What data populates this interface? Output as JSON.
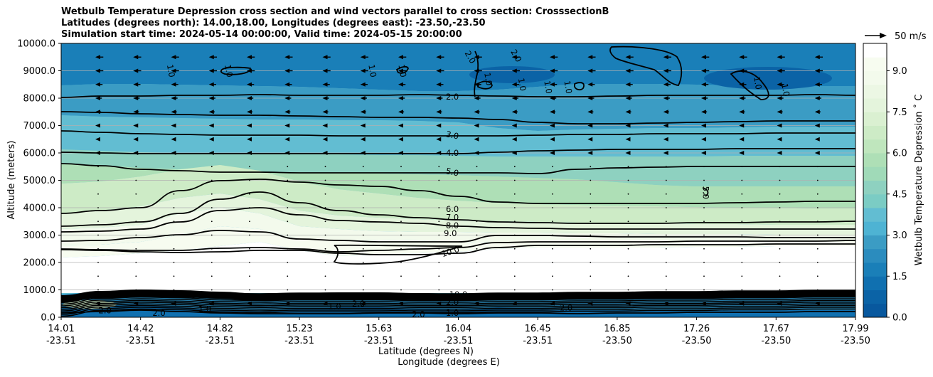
{
  "chart_data": {
    "type": "contour",
    "title_lines": [
      "Wetbulb Temperature Depression cross section and wind vectors parallel to cross section: CrosssectionB",
      "Latitudes (degrees north): 14.00,18.00, Longitudes (degrees east): -23.50,-23.50",
      "Simulation start time: 2024-05-14 00:00:00, Valid time: 2024-05-15 20:00:00"
    ],
    "xlabel_lines": [
      "Latitude (degrees N)",
      "Longitude (degrees E)"
    ],
    "ylabel": "Altitude (meters)",
    "ylim": [
      0,
      10000
    ],
    "yticks": [
      0,
      1000,
      2000,
      3000,
      4000,
      5000,
      6000,
      7000,
      8000,
      9000,
      10000
    ],
    "ytick_labels": [
      "0.0",
      "1000.0",
      "2000.0",
      "3000.0",
      "4000.0",
      "5000.0",
      "6000.0",
      "7000.0",
      "8000.0",
      "9000.0",
      "10000.0"
    ],
    "xlim": [
      14.01,
      17.99
    ],
    "xticks_lat": [
      "14.01",
      "14.42",
      "14.82",
      "15.23",
      "15.63",
      "16.04",
      "16.45",
      "16.85",
      "17.26",
      "17.67",
      "17.99"
    ],
    "xticks_lon": [
      "-23.51",
      "-23.51",
      "-23.51",
      "-23.51",
      "-23.51",
      "-23.51",
      "-23.51",
      "-23.50",
      "-23.50",
      "-23.50",
      "-23.50"
    ],
    "colorbar": {
      "label": "Wetbulb Temperature Depression $^\\circ$C",
      "label_display": "Wetbulb Temperature Depression ˚ C",
      "range": [
        0,
        10
      ],
      "levels": [
        0,
        0.5,
        1,
        1.5,
        2,
        2.5,
        3,
        3.5,
        4,
        4.5,
        5,
        5.5,
        6,
        6.5,
        7,
        7.5,
        8,
        8.5,
        9,
        9.5,
        10
      ],
      "ticks": [
        0,
        1.5,
        3,
        4.5,
        6,
        7.5,
        9
      ],
      "tick_labels": [
        "0.0",
        "1.5",
        "3.0",
        "4.5",
        "6.0",
        "7.5",
        "9.0"
      ],
      "colors": [
        "#08589e",
        "#0b63a6",
        "#1070b0",
        "#1a7fb8",
        "#2b8cbe",
        "#3b9cc4",
        "#4eb3d3",
        "#62bdd2",
        "#7bccc4",
        "#8ed1c0",
        "#a0dab8",
        "#aedfb6",
        "#bfe6bd",
        "#cdebc6",
        "#daf0d1",
        "#e4f4dc",
        "#ecf7e4",
        "#f3faec",
        "#f7fcf0",
        "#ffffff"
      ]
    },
    "contour_line_labels": [
      {
        "text": "1.0",
        "lat": 14.56,
        "alt": 9000
      },
      {
        "text": "1.0",
        "lat": 14.85,
        "alt": 9000
      },
      {
        "text": "1.0",
        "lat": 15.57,
        "alt": 9000
      },
      {
        "text": "1.0",
        "lat": 15.72,
        "alt": 9000
      },
      {
        "text": "2.0",
        "lat": 16.06,
        "alt": 9500
      },
      {
        "text": "2.0",
        "lat": 16.29,
        "alt": 9550
      },
      {
        "text": "1.0",
        "lat": 16.15,
        "alt": 8700
      },
      {
        "text": "1.0",
        "lat": 16.32,
        "alt": 8500
      },
      {
        "text": "1.0",
        "lat": 16.45,
        "alt": 8400
      },
      {
        "text": "1.0",
        "lat": 16.55,
        "alt": 8400
      },
      {
        "text": "1.0",
        "lat": 17.5,
        "alt": 8550
      },
      {
        "text": "1.0",
        "lat": 17.64,
        "alt": 8300
      },
      {
        "text": "2.0",
        "lat": 15.97,
        "alt": 8050
      },
      {
        "text": "3.0",
        "lat": 15.97,
        "alt": 6650
      },
      {
        "text": "4.0",
        "lat": 15.97,
        "alt": 6000
      },
      {
        "text": "5.0",
        "lat": 15.97,
        "alt": 5300
      },
      {
        "text": "5.0",
        "lat": 17.24,
        "alt": 4550
      },
      {
        "text": "6.0",
        "lat": 15.97,
        "alt": 3950
      },
      {
        "text": "7.0",
        "lat": 15.97,
        "alt": 3650
      },
      {
        "text": "8.0",
        "lat": 15.97,
        "alt": 3350
      },
      {
        "text": "9.0",
        "lat": 15.96,
        "alt": 3060
      },
      {
        "text": "10.0",
        "lat": 15.96,
        "alt": 2400
      },
      {
        "text": "1.0",
        "lat": 15.97,
        "alt": 150
      },
      {
        "text": "2.0",
        "lat": 15.97,
        "alt": 550
      },
      {
        "text": "2.0",
        "lat": 16.54,
        "alt": 350
      },
      {
        "text": "2.0",
        "lat": 15.8,
        "alt": 100
      },
      {
        "text": "1.0",
        "lat": 14.73,
        "alt": 300
      },
      {
        "text": "1.0",
        "lat": 15.38,
        "alt": 400
      },
      {
        "text": "2.0",
        "lat": 14.23,
        "alt": 250
      },
      {
        "text": "2.0",
        "lat": 14.5,
        "alt": 150
      },
      {
        "text": "2.0",
        "lat": 15.5,
        "alt": 500
      },
      {
        "text": "10.0",
        "lat": 16.0,
        "alt": 830
      }
    ],
    "quiver_key": {
      "label": "50 m/s",
      "speed": 50
    },
    "wind_vectors": [
      {
        "alt": 9500,
        "u": -7
      },
      {
        "alt": 9000,
        "u": -7
      },
      {
        "alt": 8500,
        "u": -6
      },
      {
        "alt": 8000,
        "u": -5
      },
      {
        "alt": 7500,
        "u": -4
      },
      {
        "alt": 7000,
        "u": -2
      },
      {
        "alt": 6500,
        "u": -1
      },
      {
        "alt": 6000,
        "u": -1
      },
      {
        "alt": 5500,
        "u": 0
      },
      {
        "alt": 5000,
        "u": 0
      },
      {
        "alt": 4500,
        "u": 0
      },
      {
        "alt": 4000,
        "u": 0
      },
      {
        "alt": 3500,
        "u": 0
      },
      {
        "alt": 3000,
        "u": 0
      },
      {
        "alt": 2500,
        "u": 0
      },
      {
        "alt": 2000,
        "u": 0
      },
      {
        "alt": 1500,
        "u": 0
      },
      {
        "alt": 1000,
        "u": 0
      },
      {
        "alt": 500,
        "u": -1
      }
    ]
  }
}
